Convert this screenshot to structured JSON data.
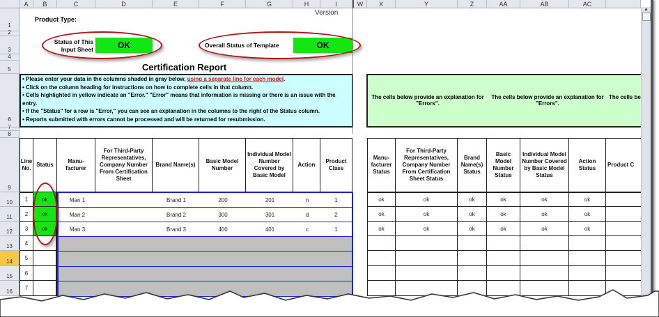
{
  "sheet": {
    "column_letters": [
      "A",
      "B",
      "C",
      "D",
      "E",
      "F",
      "G",
      "H",
      "I",
      "W",
      "X",
      "Y",
      "Z",
      "AA",
      "AB",
      "AC"
    ],
    "row_numbers": [
      "1",
      "2",
      "3",
      "4",
      "5",
      "6",
      "7",
      "8",
      "9",
      "10",
      "11",
      "12",
      "13",
      "14",
      "15",
      "16"
    ],
    "selected_row": "14",
    "version_label": "Version",
    "product_type_label": "Product Type:",
    "status_input_label": "Status of This Input Sheet",
    "status_input_value": "OK",
    "overall_status_label": "Overall Status of Template",
    "overall_status_value": "OK",
    "report_title": "Certification Report",
    "instructions": {
      "line1_pre": "• Please enter your data in the columns shaded in gray below, ",
      "line1_link": "using a separate line for each model",
      "line1_post": ".",
      "line2": "• Click on the column heading for instructions on how to complete cells in that column.",
      "line3": "• Cells highlighted in yellow indicate an \"Error.\"  \"Error\" means that information is missing or there is an issue with the entry.",
      "line4": "• If the \"Status\" for a row is \"Error,\" you can see an explanation in the columns to the right of the Status column.",
      "line5": "• Reports submitted with errors cannot be processed and will be returned for resubmission."
    },
    "explanation_texts": [
      "The cells below provide an explanation for \"Errors\".",
      "The cells below provide an explanation for \"Errors\".",
      "The cells be"
    ],
    "main_headers": [
      "Line No.",
      "Status",
      "Manu-facturer",
      "For Third-Party Representatives, Company Number From Certification Sheet",
      "Brand Name(s)",
      "Basic Model Number",
      "Individual Model Number Covered by Basic Model",
      "Action",
      "Product Class"
    ],
    "status_headers": [
      "Manu-facturer Status",
      "For Third-Party Representatives, Company Number From Certification Sheet Status",
      "Brand Name(s) Status",
      "Basic Model Number Status",
      "Individual Model Number Covered by Basic Model Status",
      "Action Status",
      "Product C"
    ],
    "rows": [
      {
        "line": "1",
        "status": "ok",
        "manufacturer": "Man 1",
        "company": "",
        "brand": "Brand 1",
        "basic": "200",
        "individual": "201",
        "action": "n",
        "class": "1",
        "checks": [
          "ok",
          "ok",
          "ok",
          "ok",
          "ok",
          "ok",
          ""
        ]
      },
      {
        "line": "2",
        "status": "ok",
        "manufacturer": "Man 2",
        "company": "",
        "brand": "Brand 2",
        "basic": "300",
        "individual": "301",
        "action": "d",
        "class": "2",
        "checks": [
          "ok",
          "ok",
          "ok",
          "ok",
          "ok",
          "ok",
          ""
        ]
      },
      {
        "line": "3",
        "status": "ok",
        "manufacturer": "Man 3",
        "company": "",
        "brand": "Brand 3",
        "basic": "400",
        "individual": "401",
        "action": "c",
        "class": "1",
        "checks": [
          "ok",
          "ok",
          "ok",
          "ok",
          "ok",
          "ok",
          ""
        ]
      },
      {
        "line": "4",
        "status": "",
        "manufacturer": "",
        "company": "",
        "brand": "",
        "basic": "",
        "individual": "",
        "action": "",
        "class": "",
        "checks": [
          "",
          "",
          "",
          "",
          "",
          "",
          ""
        ]
      },
      {
        "line": "5",
        "status": "",
        "manufacturer": "",
        "company": "",
        "brand": "",
        "basic": "",
        "individual": "",
        "action": "",
        "class": "",
        "checks": [
          "",
          "",
          "",
          "",
          "",
          "",
          ""
        ]
      },
      {
        "line": "6",
        "status": "",
        "manufacturer": "",
        "company": "",
        "brand": "",
        "basic": "",
        "individual": "",
        "action": "",
        "class": "",
        "checks": [
          "",
          "",
          "",
          "",
          "",
          "",
          ""
        ]
      },
      {
        "line": "7",
        "status": "",
        "manufacturer": "",
        "company": "",
        "brand": "",
        "basic": "",
        "individual": "",
        "action": "",
        "class": "",
        "checks": [
          "",
          "",
          "",
          "",
          "",
          "",
          ""
        ]
      }
    ],
    "colors": {
      "ok_green": "#14e614",
      "input_gray": "#c0c0c0",
      "instruction_bg": "#ccffff",
      "explanation_bg": "#ccffcc",
      "highlight_ellipse": "#b01818",
      "grid_blue": "#2020e0"
    }
  }
}
